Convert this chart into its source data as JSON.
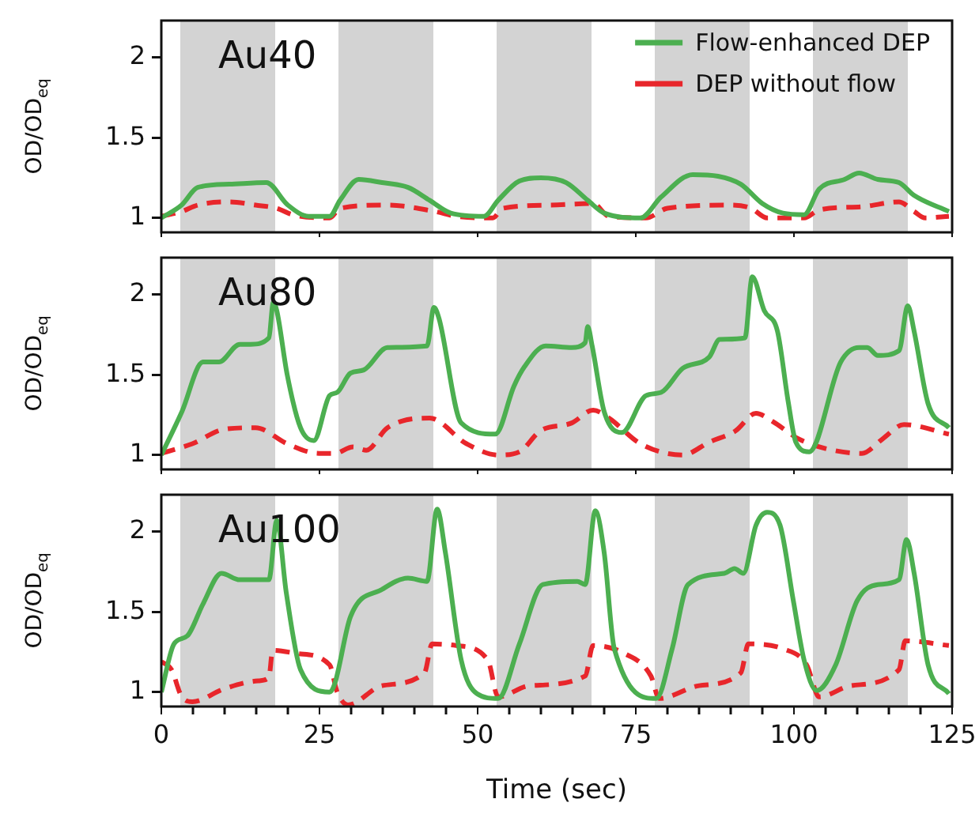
{
  "chart_data": [
    {
      "type": "line",
      "title": "Au40",
      "ylabel": "OD/OD$_{eq}$",
      "xlim": [
        0,
        125
      ],
      "xticks": [
        0,
        25,
        50,
        75,
        100,
        125
      ],
      "ylim": [
        0.91,
        2.23
      ],
      "yticks": [
        1,
        1.5,
        2
      ],
      "tick_labels": "y",
      "grid": false,
      "marker": "none",
      "legend": "top right",
      "bands": [
        {
          "axis": "x",
          "from": 3,
          "to": 18,
          "color": "#d3d3d3"
        },
        {
          "axis": "x",
          "from": 28,
          "to": 43,
          "color": "#d3d3d3"
        },
        {
          "axis": "x",
          "from": 53,
          "to": 68,
          "color": "#d3d3d3"
        },
        {
          "axis": "x",
          "from": 78,
          "to": 93,
          "color": "#d3d3d3"
        },
        {
          "axis": "x",
          "from": 103,
          "to": 118,
          "color": "#d3d3d3"
        }
      ],
      "series": [
        {
          "name": "Flow-enhanced DEP",
          "color": "#4caf50",
          "line_style": "solid",
          "x": [
            0,
            3.2,
            5.75,
            10.75,
            16.6,
            20,
            23.3,
            26.6,
            28.25,
            31.2,
            34.9,
            39,
            42.4,
            45.75,
            51,
            53.25,
            56.6,
            60,
            64,
            67.4,
            70,
            75.75,
            79,
            84,
            88,
            91.6,
            95,
            98.25,
            101.6,
            104,
            108,
            110.3,
            113.25,
            116.6,
            119,
            124.5
          ],
          "values": [
            1.0,
            1.08,
            1.19,
            1.21,
            1.22,
            1.08,
            1.01,
            1.01,
            1.11,
            1.24,
            1.22,
            1.19,
            1.11,
            1.03,
            1.01,
            1.11,
            1.23,
            1.25,
            1.22,
            1.11,
            1.03,
            1.0,
            1.13,
            1.27,
            1.26,
            1.21,
            1.09,
            1.03,
            1.02,
            1.18,
            1.24,
            1.28,
            1.24,
            1.22,
            1.14,
            1.04
          ]
        },
        {
          "name": "DEP without flow",
          "color": "#e8262b",
          "line_style": "dashed",
          "x": [
            0,
            3.25,
            5.75,
            10.75,
            14.9,
            18.25,
            20.75,
            26.6,
            28.25,
            35.75,
            43.25,
            46.6,
            52.4,
            54,
            61.6,
            68.25,
            70.75,
            76.6,
            80,
            90,
            93.25,
            95.75,
            101.6,
            104,
            110.75,
            116.6,
            119,
            120.75,
            124.5
          ],
          "values": [
            1.01,
            1.04,
            1.08,
            1.1,
            1.08,
            1.06,
            1.02,
            1.0,
            1.06,
            1.08,
            1.04,
            1.01,
            1.0,
            1.06,
            1.08,
            1.09,
            1.01,
            1.0,
            1.06,
            1.08,
            1.06,
            1.0,
            1.0,
            1.05,
            1.07,
            1.1,
            1.04,
            1.0,
            1.01
          ]
        }
      ]
    },
    {
      "type": "line",
      "title": "Au80",
      "ylabel": "OD/OD$_{eq}$",
      "xlim": [
        0,
        125
      ],
      "xticks": [
        0,
        25,
        50,
        75,
        100,
        125
      ],
      "ylim": [
        0.91,
        2.23
      ],
      "yticks": [
        1,
        1.5,
        2
      ],
      "tick_labels": "y",
      "grid": false,
      "marker": "none",
      "bands": [
        {
          "axis": "x",
          "from": 3,
          "to": 18,
          "color": "#d3d3d3"
        },
        {
          "axis": "x",
          "from": 28,
          "to": 43,
          "color": "#d3d3d3"
        },
        {
          "axis": "x",
          "from": 53,
          "to": 68,
          "color": "#d3d3d3"
        },
        {
          "axis": "x",
          "from": 78,
          "to": 93,
          "color": "#d3d3d3"
        },
        {
          "axis": "x",
          "from": 103,
          "to": 118,
          "color": "#d3d3d3"
        }
      ],
      "series": [
        {
          "color": "#4caf50",
          "line_style": "solid",
          "x": [
            0,
            3.25,
            6.6,
            9.1,
            12.4,
            14.1,
            17,
            17.7,
            18.25,
            19.9,
            22,
            24.1,
            26.6,
            27.8,
            29.9,
            32,
            35.75,
            42,
            43.1,
            43.9,
            47.4,
            52.8,
            55.75,
            57.4,
            60.75,
            64.9,
            67,
            67.4,
            68.1,
            70,
            72.8,
            76.6,
            79,
            82.4,
            86.6,
            88.25,
            92.25,
            93.4,
            95.3,
            97.4,
            99.1,
            100.3,
            102.4,
            107.4,
            110.3,
            111.6,
            113.25,
            116.6,
            118,
            119,
            121.2,
            124.5
          ],
          "values": [
            1.0,
            1.27,
            1.58,
            1.58,
            1.69,
            1.69,
            1.73,
            1.95,
            1.9,
            1.5,
            1.17,
            1.09,
            1.37,
            1.39,
            1.51,
            1.53,
            1.67,
            1.68,
            1.92,
            1.85,
            1.2,
            1.13,
            1.43,
            1.55,
            1.68,
            1.67,
            1.7,
            1.8,
            1.68,
            1.27,
            1.14,
            1.37,
            1.39,
            1.54,
            1.61,
            1.72,
            1.73,
            2.11,
            1.9,
            1.77,
            1.33,
            1.08,
            1.02,
            1.58,
            1.67,
            1.67,
            1.62,
            1.65,
            1.93,
            1.77,
            1.32,
            1.17
          ]
        },
        {
          "color": "#e8262b",
          "line_style": "dashed",
          "x": [
            0,
            4.9,
            9.9,
            14.9,
            19.9,
            24.9,
            27.4,
            30.3,
            32.4,
            35.75,
            42.4,
            48.25,
            53.25,
            56.6,
            59.9,
            64.9,
            68.25,
            70.75,
            75.75,
            82.4,
            86.6,
            90.75,
            94,
            96.6,
            100.75,
            105,
            110.75,
            114,
            117.4,
            124.5
          ],
          "values": [
            1.01,
            1.07,
            1.16,
            1.17,
            1.07,
            1.01,
            1.01,
            1.05,
            1.03,
            1.17,
            1.23,
            1.07,
            1.0,
            1.02,
            1.15,
            1.2,
            1.28,
            1.23,
            1.07,
            1.0,
            1.08,
            1.15,
            1.26,
            1.21,
            1.1,
            1.04,
            1.01,
            1.1,
            1.19,
            1.13
          ]
        }
      ]
    },
    {
      "type": "line",
      "title": "Au100",
      "xlabel": "Time (sec)",
      "ylabel": "OD/OD$_{eq}$",
      "xlim": [
        0,
        125
      ],
      "xticks": [
        0,
        {
          "value": 5,
          "label": null
        },
        {
          "value": 10,
          "label": null
        },
        {
          "value": 15,
          "label": null
        },
        {
          "value": 20,
          "label": null
        },
        25,
        {
          "value": 30,
          "label": null
        },
        {
          "value": 35,
          "label": null
        },
        {
          "value": 40,
          "label": null
        },
        {
          "value": 45,
          "label": null
        },
        50,
        {
          "value": 55,
          "label": null
        },
        {
          "value": 60,
          "label": null
        },
        {
          "value": 65,
          "label": null
        },
        {
          "value": 70,
          "label": null
        },
        75,
        {
          "value": 80,
          "label": null
        },
        {
          "value": 85,
          "label": null
        },
        {
          "value": 90,
          "label": null
        },
        {
          "value": 95,
          "label": null
        },
        100,
        {
          "value": 105,
          "label": null
        },
        {
          "value": 110,
          "label": null
        },
        {
          "value": 115,
          "label": null
        },
        {
          "value": 120,
          "label": null
        },
        125
      ],
      "ylim": [
        0.91,
        2.23
      ],
      "yticks": [
        1,
        1.5,
        2
      ],
      "grid": false,
      "marker": "none",
      "bands": [
        {
          "axis": "x",
          "from": 3,
          "to": 18,
          "color": "#d3d3d3"
        },
        {
          "axis": "x",
          "from": 28,
          "to": 43,
          "color": "#d3d3d3"
        },
        {
          "axis": "x",
          "from": 53,
          "to": 68,
          "color": "#d3d3d3"
        },
        {
          "axis": "x",
          "from": 78,
          "to": 93,
          "color": "#d3d3d3"
        },
        {
          "axis": "x",
          "from": 103,
          "to": 118,
          "color": "#d3d3d3"
        }
      ],
      "series": [
        {
          "color": "#4caf50",
          "line_style": "solid",
          "x": [
            0,
            2,
            4.1,
            6.6,
            9.5,
            12.4,
            17,
            18.25,
            19.75,
            22,
            26.6,
            27.4,
            29.9,
            34.9,
            39,
            42,
            43.6,
            44.9,
            47.4,
            49.9,
            53.25,
            56.6,
            60.3,
            65.75,
            67,
            68.6,
            70,
            71.6,
            78.25,
            80.75,
            83.25,
            89,
            90.6,
            92,
            94,
            95.75,
            97.8,
            99.9,
            101.6,
            103.6,
            106.6,
            110,
            113.25,
            116.6,
            117.8,
            119,
            121.2,
            124.5
          ],
          "values": [
            1.0,
            1.3,
            1.35,
            1.55,
            1.74,
            1.7,
            1.7,
            2.07,
            1.62,
            1.14,
            1.0,
            1.05,
            1.47,
            1.64,
            1.71,
            1.69,
            2.14,
            1.87,
            1.2,
            0.99,
            0.96,
            1.3,
            1.67,
            1.69,
            1.67,
            2.13,
            1.87,
            1.27,
            0.96,
            1.27,
            1.67,
            1.74,
            1.77,
            1.74,
            2.04,
            2.12,
            2.04,
            1.57,
            1.2,
            1.01,
            1.17,
            1.57,
            1.67,
            1.7,
            1.95,
            1.74,
            1.17,
            0.99
          ]
        },
        {
          "color": "#e8262b",
          "line_style": "dashed",
          "x": [
            0,
            1.6,
            3.25,
            4.9,
            9.9,
            15.3,
            17,
            17.6,
            21.6,
            26.6,
            27.8,
            29.5,
            34.9,
            41.6,
            42.8,
            46.6,
            51.6,
            53.25,
            58.25,
            67,
            68.25,
            73.25,
            77.4,
            78.7,
            85,
            91.6,
            92.8,
            98.25,
            102,
            104,
            109,
            116.6,
            117.6,
            124.5
          ],
          "values": [
            1.19,
            1.14,
            0.97,
            0.94,
            1.02,
            1.07,
            1.09,
            1.26,
            1.24,
            1.17,
            1.0,
            0.92,
            1.04,
            1.12,
            1.3,
            1.29,
            1.2,
            0.97,
            1.04,
            1.1,
            1.29,
            1.24,
            1.1,
            0.96,
            1.04,
            1.12,
            1.3,
            1.27,
            1.17,
            0.97,
            1.04,
            1.14,
            1.32,
            1.29
          ]
        }
      ]
    }
  ]
}
